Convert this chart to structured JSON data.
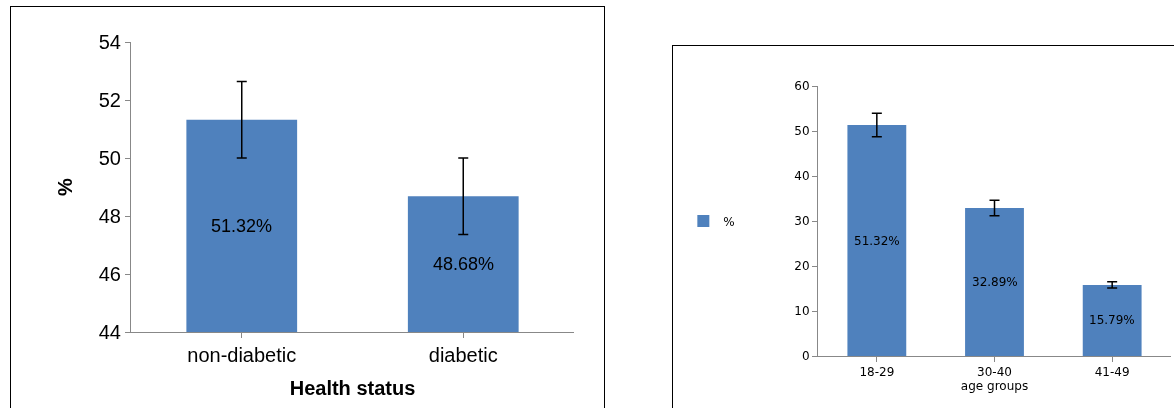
{
  "chart_data": [
    {
      "type": "bar",
      "ylabel": "%",
      "xlabel": "Health status",
      "categories": [
        "non-diabetic",
        "diabetic"
      ],
      "series": [
        {
          "color": "#4f81bd",
          "values": [
            51.32,
            48.68
          ],
          "errors": [
            1.32,
            1.32
          ],
          "value_labels": [
            "51.32%",
            "48.68%"
          ]
        }
      ],
      "ylim": [
        44,
        54
      ],
      "yticks": [
        44,
        46,
        48,
        50,
        52,
        54
      ],
      "grid": false,
      "legend": false
    },
    {
      "type": "bar",
      "xlabel": "age groups",
      "categories": [
        "18-29",
        "30-40",
        "41-49"
      ],
      "series": [
        {
          "name": "%",
          "color": "#4f81bd",
          "values": [
            51.32,
            32.89,
            15.79
          ],
          "errors": [
            2.6,
            1.7,
            0.7
          ],
          "value_labels": [
            "51.32%",
            "32.89%",
            "15.79%"
          ]
        }
      ],
      "ylim": [
        0,
        60
      ],
      "yticks": [
        0,
        10,
        20,
        30,
        40,
        50,
        60
      ],
      "grid": false,
      "legend": "left"
    }
  ]
}
